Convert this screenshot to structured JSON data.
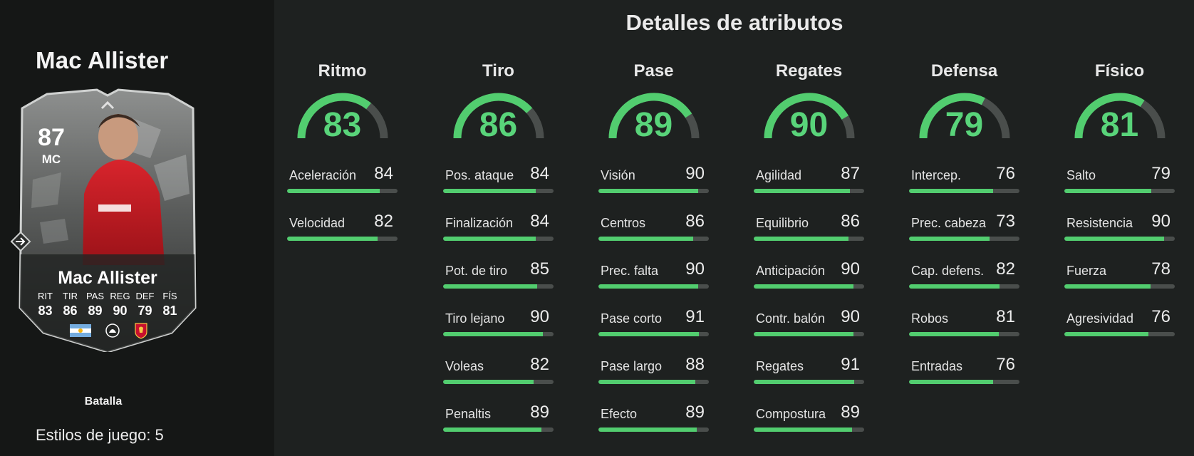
{
  "player": {
    "title": "Mac Allister",
    "card": {
      "rating": "87",
      "position": "MC",
      "name": "Mac Allister",
      "stat_labels": [
        "RIT",
        "TIR",
        "PAS",
        "REG",
        "DEF",
        "FÍS"
      ],
      "stat_values": [
        "83",
        "86",
        "89",
        "90",
        "79",
        "81"
      ],
      "nation": "argentina-flag-icon",
      "league": "premier-league-icon",
      "club": "liverpool-crest-icon"
    },
    "card_type": "Batalla",
    "playstyles": "Estilos de juego: 5"
  },
  "attributes": {
    "title": "Detalles de atributos",
    "categories": [
      {
        "name": "Ritmo",
        "value": 83,
        "items": [
          {
            "name": "Aceleración",
            "value": 84
          },
          {
            "name": "Velocidad",
            "value": 82
          }
        ]
      },
      {
        "name": "Tiro",
        "value": 86,
        "items": [
          {
            "name": "Pos. ataque",
            "value": 84
          },
          {
            "name": "Finalización",
            "value": 84
          },
          {
            "name": "Pot. de tiro",
            "value": 85
          },
          {
            "name": "Tiro lejano",
            "value": 90
          },
          {
            "name": "Voleas",
            "value": 82
          },
          {
            "name": "Penaltis",
            "value": 89
          }
        ]
      },
      {
        "name": "Pase",
        "value": 89,
        "items": [
          {
            "name": "Visión",
            "value": 90
          },
          {
            "name": "Centros",
            "value": 86
          },
          {
            "name": "Prec. falta",
            "value": 90
          },
          {
            "name": "Pase corto",
            "value": 91
          },
          {
            "name": "Pase largo",
            "value": 88
          },
          {
            "name": "Efecto",
            "value": 89
          }
        ]
      },
      {
        "name": "Regates",
        "value": 90,
        "items": [
          {
            "name": "Agilidad",
            "value": 87
          },
          {
            "name": "Equilibrio",
            "value": 86
          },
          {
            "name": "Anticipación",
            "value": 90
          },
          {
            "name": "Contr. balón",
            "value": 90
          },
          {
            "name": "Regates",
            "value": 91
          },
          {
            "name": "Compostura",
            "value": 89
          }
        ]
      },
      {
        "name": "Defensa",
        "value": 79,
        "items": [
          {
            "name": "Intercep.",
            "value": 76
          },
          {
            "name": "Prec. cabeza",
            "value": 73
          },
          {
            "name": "Cap. defens.",
            "value": 82
          },
          {
            "name": "Robos",
            "value": 81
          },
          {
            "name": "Entradas",
            "value": 76
          }
        ]
      },
      {
        "name": "Físico",
        "value": 81,
        "items": [
          {
            "name": "Salto",
            "value": 79
          },
          {
            "name": "Resistencia",
            "value": 90
          },
          {
            "name": "Fuerza",
            "value": 78
          },
          {
            "name": "Agresividad",
            "value": 76
          }
        ]
      }
    ]
  },
  "colors": {
    "accent": "#52cd6f",
    "accent_text": "#59d47a",
    "track": "#4a4e4c",
    "background": "#1e2120",
    "panel": "#151716"
  }
}
